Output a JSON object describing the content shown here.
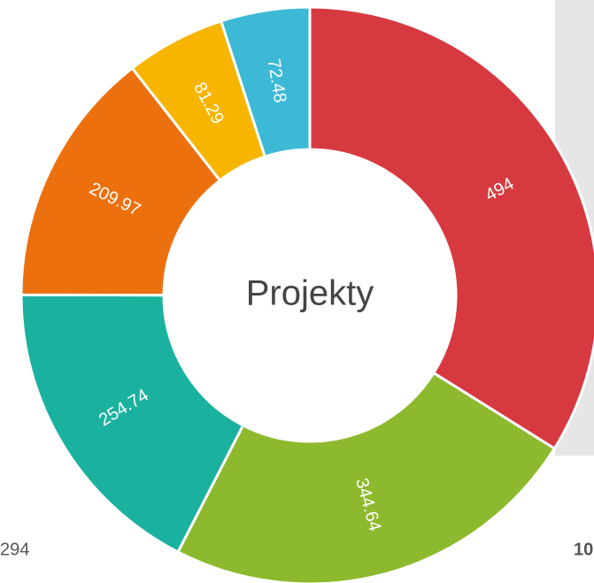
{
  "chart_data": {
    "type": "donut",
    "center_label": "Projekty",
    "values": [
      494,
      344.64,
      254.74,
      209.97,
      81.29,
      72.48
    ],
    "colors": [
      "#d63a40",
      "#8db92e",
      "#1bb19f",
      "#ed700e",
      "#f7b500",
      "#3db9d6"
    ],
    "annotations": [
      "294",
      "10"
    ]
  }
}
